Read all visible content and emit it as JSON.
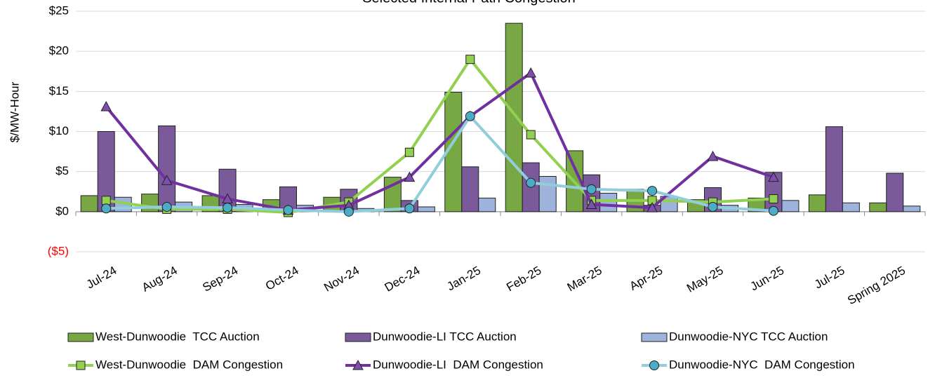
{
  "chart_data": {
    "type": "combo",
    "title": "Selected Internal Path Congestion",
    "y_label": "$/MW-Hour",
    "categories": [
      "Jul-24",
      "Aug-24",
      "Sep-24",
      "Oct-24",
      "Nov-24",
      "Dec-24",
      "Jan-25",
      "Feb-25",
      "Mar-25",
      "Apr-25",
      "May-25",
      "Jun-25",
      "Jul-25",
      "Spring 2025"
    ],
    "ylim": [
      -5,
      25
    ],
    "yticks": [
      {
        "value": -5,
        "label": "($5)"
      },
      {
        "value": 0,
        "label": "$0"
      },
      {
        "value": 5,
        "label": "$5"
      },
      {
        "value": 10,
        "label": "$10"
      },
      {
        "value": 15,
        "label": "$15"
      },
      {
        "value": 20,
        "label": "$20"
      },
      {
        "value": 25,
        "label": "$25"
      }
    ],
    "negative_tick_color": "#ff0000",
    "grid": true,
    "legend": "bottom",
    "series": [
      {
        "name": "West-Dunwoodie  TCC Auction",
        "type": "bar",
        "color": "#77a843",
        "values": [
          2.0,
          2.2,
          2.0,
          1.5,
          1.8,
          4.3,
          14.9,
          23.5,
          7.6,
          2.8,
          1.5,
          1.7,
          2.1,
          1.1
        ]
      },
      {
        "name": "Dunwoodie-LI TCC Auction",
        "type": "bar",
        "color": "#7a5a9a",
        "values": [
          10.0,
          10.7,
          5.3,
          3.1,
          2.8,
          1.4,
          5.6,
          6.1,
          4.6,
          0.8,
          3.0,
          4.9,
          10.6,
          4.8
        ]
      },
      {
        "name": "Dunwoodie-NYC TCC Auction",
        "type": "bar",
        "color": "#9db3dc",
        "values": [
          1.8,
          1.2,
          0.9,
          0.8,
          0.4,
          0.6,
          1.7,
          4.4,
          2.3,
          1.9,
          0.8,
          1.4,
          1.1,
          0.7
        ]
      },
      {
        "name": "West-Dunwoodie  DAM Congestion",
        "type": "line",
        "color": "#92d050",
        "marker": "square",
        "marker_color": "#92d050",
        "values": [
          1.4,
          0.3,
          0.3,
          -0.1,
          1.2,
          7.4,
          19.0,
          9.6,
          1.4,
          1.4,
          1.2,
          1.6,
          null,
          null
        ]
      },
      {
        "name": "Dunwoodie-LI  DAM Congestion",
        "type": "line",
        "color": "#7030a0",
        "marker": "triangle",
        "marker_color": "#7f4fb0",
        "values": [
          13.1,
          3.9,
          1.6,
          0.2,
          0.8,
          4.3,
          11.9,
          17.3,
          0.9,
          0.5,
          6.9,
          4.3,
          null,
          null
        ]
      },
      {
        "name": "Dunwoodie-NYC  DAM Congestion",
        "type": "line",
        "color": "#92cddc",
        "marker": "circle",
        "marker_color": "#4bacc6",
        "values": [
          0.4,
          0.6,
          0.5,
          0.2,
          0.0,
          0.4,
          11.9,
          3.6,
          2.8,
          2.6,
          0.6,
          0.1,
          null,
          null
        ]
      }
    ]
  }
}
